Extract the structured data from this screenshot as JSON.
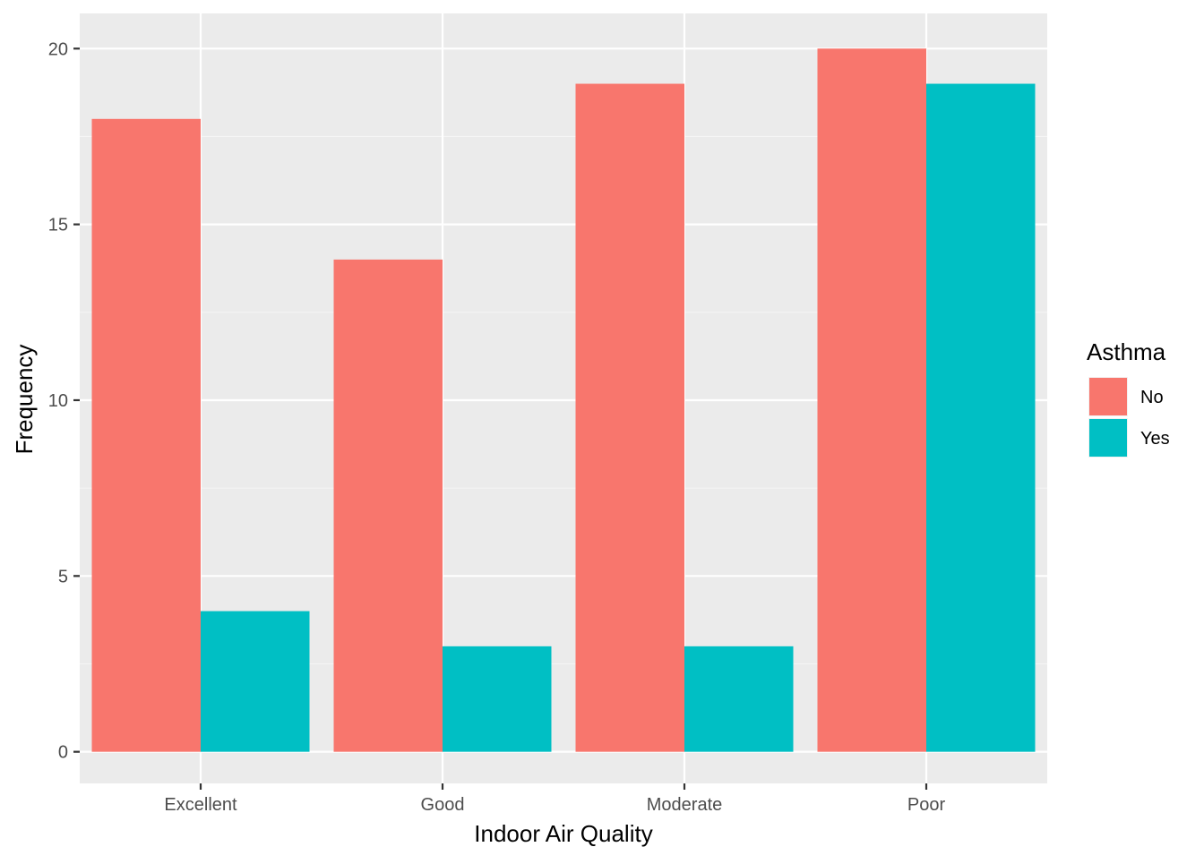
{
  "chart_data": {
    "type": "bar",
    "title": "",
    "xlabel": "Indoor Air Quality",
    "ylabel": "Frequency",
    "categories": [
      "Excellent",
      "Good",
      "Moderate",
      "Poor"
    ],
    "series": [
      {
        "name": "No",
        "color": "#F8766D",
        "values": [
          18,
          14,
          19,
          20
        ]
      },
      {
        "name": "Yes",
        "color": "#00BFC4",
        "values": [
          4,
          3,
          3,
          19
        ]
      }
    ],
    "ylim": [
      -0.9,
      21
    ],
    "yticks": [
      0,
      5,
      10,
      15,
      20
    ],
    "ytick_labels": [
      "0",
      "5",
      "10",
      "15",
      "20"
    ],
    "grid": true,
    "legend": {
      "title": "Asthma",
      "position": "right"
    },
    "colors": {
      "panel_background": "#EBEBEB",
      "grid_major": "#FFFFFF",
      "grid_minor": "#F5F5F5"
    }
  }
}
